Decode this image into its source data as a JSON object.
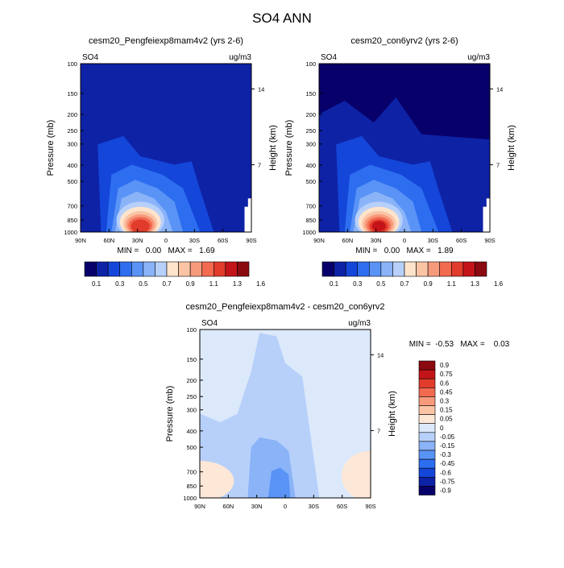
{
  "figure": {
    "title": "SO4 ANN"
  },
  "colors": {
    "background": "#ffffff",
    "frame": "#000000",
    "positive_scale": [
      "#08006a",
      "#0e22a6",
      "#1446d9",
      "#2d6ef0",
      "#5a93f6",
      "#8ab3f8",
      "#b7d0fa",
      "#ffe4cc",
      "#fbc4a4",
      "#f79a7c",
      "#f26a50",
      "#e13b2c",
      "#c41419",
      "#8b0a10"
    ],
    "diff_scale": [
      "#8b0a10",
      "#c41419",
      "#e13b2c",
      "#f26a50",
      "#f79a7c",
      "#fbc4a4",
      "#fde7d6",
      "#dce9fb",
      "#b7d0fa",
      "#8ab3f8",
      "#5a93f6",
      "#2d6ef0",
      "#1446d9",
      "#0e22a6",
      "#08006a"
    ]
  },
  "chart_data": [
    {
      "id": "panel-left",
      "type": "heatmap",
      "title": "cesm20_Pengfeiexp8mam4v2 (yrs 2-6)",
      "variable_label": "SO4",
      "units_label": "ug/m3",
      "ylabel": "Pressure (mb)",
      "y2label": "Height (km)",
      "xticks": [
        "90N",
        "60N",
        "30N",
        "0",
        "30S",
        "60S",
        "90S"
      ],
      "yticks": [
        "100",
        "150",
        "200",
        "250",
        "300",
        "400",
        "500",
        "700",
        "850",
        "1000"
      ],
      "y2ticks": [
        "14",
        "7"
      ],
      "stats_text": "MIN =   0.00   MAX =   1.69",
      "y_scale": "log",
      "ylim": [
        1000,
        100
      ],
      "xlim": [
        "90N",
        "90S"
      ],
      "colorbar": {
        "orientation": "horizontal",
        "placement": "bottom",
        "labels": [
          "0.1",
          "0.3",
          "0.5",
          "0.7",
          "0.9",
          "1.1",
          "1.3",
          "1.6"
        ]
      },
      "max_value": 1.69,
      "max_location": {
        "lat": "30N",
        "pressure_mb": 900
      }
    },
    {
      "id": "panel-right",
      "type": "heatmap",
      "title": "cesm20_con6yrv2 (yrs 2-6)",
      "variable_label": "SO4",
      "units_label": "ug/m3",
      "ylabel": "Pressure (mb)",
      "y2label": "Height (km)",
      "xticks": [
        "90N",
        "60N",
        "30N",
        "0",
        "30S",
        "60S",
        "90S"
      ],
      "yticks": [
        "100",
        "150",
        "200",
        "250",
        "300",
        "400",
        "500",
        "700",
        "850",
        "1000"
      ],
      "y2ticks": [
        "14",
        "7"
      ],
      "stats_text": "MIN =   0.00   MAX =   1.89",
      "y_scale": "log",
      "ylim": [
        1000,
        100
      ],
      "xlim": [
        "90N",
        "90S"
      ],
      "colorbar": {
        "orientation": "horizontal",
        "placement": "bottom",
        "labels": [
          "0.1",
          "0.3",
          "0.5",
          "0.7",
          "0.9",
          "1.1",
          "1.3",
          "1.6"
        ]
      },
      "max_value": 1.89,
      "max_location": {
        "lat": "30N",
        "pressure_mb": 880
      }
    },
    {
      "id": "panel-diff",
      "type": "heatmap",
      "title": "cesm20_Pengfeiexp8mam4v2 - cesm20_con6yrv2",
      "variable_label": "SO4",
      "units_label": "ug/m3",
      "ylabel": "Pressure (mb)",
      "y2label": "Height (km)",
      "xticks": [
        "90N",
        "60N",
        "30N",
        "0",
        "30S",
        "60S",
        "90S"
      ],
      "yticks": [
        "100",
        "150",
        "200",
        "250",
        "300",
        "400",
        "500",
        "700",
        "850",
        "1000"
      ],
      "y2ticks": [
        "14",
        "7"
      ],
      "stats_text": "MIN =  -0.53   MAX =    0.03",
      "y_scale": "log",
      "ylim": [
        1000,
        100
      ],
      "xlim": [
        "90N",
        "90S"
      ],
      "colorbar": {
        "orientation": "vertical",
        "placement": "right",
        "labels": [
          "0.9",
          "0.75",
          "0.6",
          "0.45",
          "0.3",
          "0.15",
          "0.05",
          "0",
          "-0.05",
          "-0.15",
          "-0.3",
          "-0.45",
          "-0.6",
          "-0.75",
          "-0.9"
        ]
      },
      "min_value": -0.53,
      "max_value": 0.03
    }
  ]
}
